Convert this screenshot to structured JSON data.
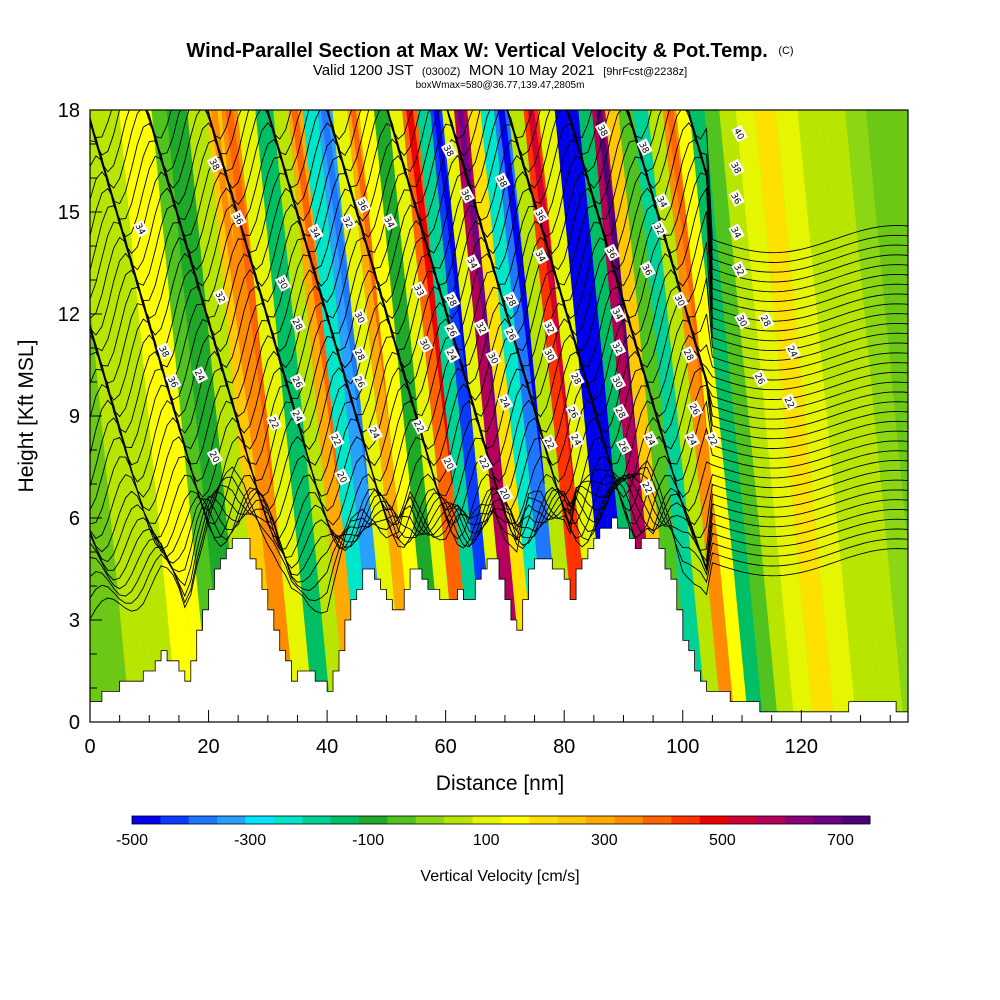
{
  "chart_data": {
    "type": "heatmap",
    "title": "Wind-Parallel Section at Max W: Vertical Velocity & Pot.Temp.",
    "title_mark": "(C)",
    "subtitle": {
      "prefix": "Valid 1200 JST",
      "utc": "(0300Z)",
      "date": "MON 10 May 2021",
      "forecast": "[9hrFcst@2238z]"
    },
    "box_info": "boxWmax=580@36.77,139.47,2805m",
    "xlabel": "Distance [nm]",
    "ylabel": "Height [Kft MSL]",
    "xlim": [
      0,
      138
    ],
    "ylim": [
      0,
      18
    ],
    "x_ticks": [
      "0",
      "20",
      "40",
      "60",
      "80",
      "100",
      "120"
    ],
    "x_tick_values": [
      0,
      20,
      40,
      60,
      80,
      100,
      120
    ],
    "y_ticks": [
      "0",
      "3",
      "6",
      "9",
      "12",
      "15",
      "18"
    ],
    "y_tick_values": [
      0,
      3,
      6,
      9,
      12,
      15,
      18
    ],
    "colorbar": {
      "label": "Vertical Velocity [cm/s]",
      "tick_labels": [
        "-500",
        "-300",
        "-100",
        "100",
        "300",
        "500",
        "700"
      ],
      "tick_values": [
        -500,
        -300,
        -100,
        100,
        300,
        500,
        700
      ],
      "range": [
        -500,
        750
      ],
      "colors": [
        "#0000ee",
        "#0a3cff",
        "#1e78ff",
        "#28a0ff",
        "#00e6ff",
        "#00e6c8",
        "#00d296",
        "#00be64",
        "#1eaa28",
        "#50c31e",
        "#8cd714",
        "#b9e600",
        "#e6f500",
        "#ffff00",
        "#ffe100",
        "#ffc800",
        "#ffaa00",
        "#ff8c00",
        "#ff6400",
        "#ff3200",
        "#ee0000",
        "#d20032",
        "#b4005a",
        "#8c0078",
        "#6e0087",
        "#500078"
      ]
    },
    "vertical_velocity_streaks": [
      {
        "x": 5,
        "w": 40
      },
      {
        "x": 9,
        "w": 60
      },
      {
        "x": 14,
        "w": 150
      },
      {
        "x": 16,
        "w": 130
      },
      {
        "x": 18,
        "w": -40
      },
      {
        "x": 21,
        "w": -90
      },
      {
        "x": 25,
        "w": 40
      },
      {
        "x": 27.5,
        "w": 260
      },
      {
        "x": 30,
        "w": 320
      },
      {
        "x": 33,
        "w": 120
      },
      {
        "x": 36,
        "w": -120
      },
      {
        "x": 39,
        "w": 60
      },
      {
        "x": 41,
        "w": 300
      },
      {
        "x": 44,
        "w": -250
      },
      {
        "x": 46,
        "w": -320
      },
      {
        "x": 49,
        "w": 80
      },
      {
        "x": 51,
        "w": 300
      },
      {
        "x": 53,
        "w": 150
      },
      {
        "x": 56,
        "w": -100
      },
      {
        "x": 58,
        "w": 80
      },
      {
        "x": 60.5,
        "w": 380
      },
      {
        "x": 63,
        "w": -200
      },
      {
        "x": 65,
        "w": -420
      },
      {
        "x": 67,
        "w": 100
      },
      {
        "x": 69,
        "w": 560
      },
      {
        "x": 71.5,
        "w": 200
      },
      {
        "x": 73.5,
        "w": -220
      },
      {
        "x": 76,
        "w": -380
      },
      {
        "x": 78.5,
        "w": 60
      },
      {
        "x": 81,
        "w": 420
      },
      {
        "x": 83.5,
        "w": 120
      },
      {
        "x": 86.5,
        "w": -460
      },
      {
        "x": 88,
        "w": -520
      },
      {
        "x": 90,
        "w": -120
      },
      {
        "x": 92.5,
        "w": 580
      },
      {
        "x": 94.5,
        "w": 250
      },
      {
        "x": 97,
        "w": -60
      },
      {
        "x": 99.5,
        "w": -200
      },
      {
        "x": 102,
        "w": 60
      },
      {
        "x": 104.5,
        "w": 330
      },
      {
        "x": 106.5,
        "w": 150
      },
      {
        "x": 109,
        "w": -120
      },
      {
        "x": 111.5,
        "w": -60
      },
      {
        "x": 114,
        "w": 40
      },
      {
        "x": 117,
        "w": 120
      },
      {
        "x": 120.5,
        "w": 200
      },
      {
        "x": 124,
        "w": 90
      },
      {
        "x": 128,
        "w": 60
      },
      {
        "x": 132,
        "w": 30
      },
      {
        "x": 136,
        "w": 20
      }
    ],
    "terrain_height_kft": [
      {
        "x": 0,
        "h": 0.6
      },
      {
        "x": 3,
        "h": 0.9
      },
      {
        "x": 6,
        "h": 1.2
      },
      {
        "x": 9,
        "h": 1.4
      },
      {
        "x": 12,
        "h": 2.0
      },
      {
        "x": 14,
        "h": 1.8
      },
      {
        "x": 15,
        "h": 1.6
      },
      {
        "x": 16,
        "h": 1.2
      },
      {
        "x": 17,
        "h": 1.8
      },
      {
        "x": 18,
        "h": 2.8
      },
      {
        "x": 20,
        "h": 4.0
      },
      {
        "x": 22,
        "h": 4.8
      },
      {
        "x": 24,
        "h": 5.4
      },
      {
        "x": 26,
        "h": 5.3
      },
      {
        "x": 28,
        "h": 4.5
      },
      {
        "x": 30,
        "h": 3.2
      },
      {
        "x": 32,
        "h": 2.0
      },
      {
        "x": 34,
        "h": 1.3
      },
      {
        "x": 36,
        "h": 1.5
      },
      {
        "x": 38,
        "h": 1.3
      },
      {
        "x": 40,
        "h": 1.0
      },
      {
        "x": 42,
        "h": 2.2
      },
      {
        "x": 44,
        "h": 3.6
      },
      {
        "x": 46,
        "h": 4.4
      },
      {
        "x": 48,
        "h": 4.3
      },
      {
        "x": 50,
        "h": 3.5
      },
      {
        "x": 52,
        "h": 3.2
      },
      {
        "x": 54,
        "h": 4.5
      },
      {
        "x": 56,
        "h": 4.2
      },
      {
        "x": 58,
        "h": 3.8
      },
      {
        "x": 60,
        "h": 3.5
      },
      {
        "x": 62,
        "h": 3.8
      },
      {
        "x": 64,
        "h": 3.6
      },
      {
        "x": 66,
        "h": 4.5
      },
      {
        "x": 68,
        "h": 4.9
      },
      {
        "x": 70,
        "h": 3.5
      },
      {
        "x": 72,
        "h": 2.6
      },
      {
        "x": 74,
        "h": 4.4
      },
      {
        "x": 76,
        "h": 4.9
      },
      {
        "x": 78,
        "h": 4.6
      },
      {
        "x": 80,
        "h": 4.2
      },
      {
        "x": 81,
        "h": 3.5
      },
      {
        "x": 82,
        "h": 4.6
      },
      {
        "x": 84,
        "h": 5.0
      },
      {
        "x": 86,
        "h": 5.6
      },
      {
        "x": 88,
        "h": 6.0
      },
      {
        "x": 90,
        "h": 5.6
      },
      {
        "x": 92,
        "h": 5.2
      },
      {
        "x": 94,
        "h": 5.5
      },
      {
        "x": 96,
        "h": 5.0
      },
      {
        "x": 98,
        "h": 4.2
      },
      {
        "x": 100,
        "h": 2.5
      },
      {
        "x": 102,
        "h": 1.6
      },
      {
        "x": 104,
        "h": 1.0
      },
      {
        "x": 106,
        "h": 0.8
      },
      {
        "x": 110,
        "h": 0.6
      },
      {
        "x": 115,
        "h": 0.3
      },
      {
        "x": 120,
        "h": 0.3
      },
      {
        "x": 125,
        "h": 0.3
      },
      {
        "x": 128,
        "h": 0.5
      },
      {
        "x": 132,
        "h": 0.6
      },
      {
        "x": 135,
        "h": 0.5
      },
      {
        "x": 138,
        "h": 0.3
      }
    ],
    "theta_contour_labels": [
      {
        "x": 21,
        "y": 16.4,
        "text": "38"
      },
      {
        "x": 8.5,
        "y": 14.5,
        "text": "34"
      },
      {
        "x": 25,
        "y": 14.8,
        "text": "36"
      },
      {
        "x": 22,
        "y": 12.5,
        "text": "32"
      },
      {
        "x": 12.5,
        "y": 10.9,
        "text": "38"
      },
      {
        "x": 14,
        "y": 10.0,
        "text": "36"
      },
      {
        "x": 18.5,
        "y": 10.2,
        "text": "24"
      },
      {
        "x": 21,
        "y": 7.8,
        "text": "20"
      },
      {
        "x": 32.5,
        "y": 12.9,
        "text": "30"
      },
      {
        "x": 38,
        "y": 14.4,
        "text": "34"
      },
      {
        "x": 35,
        "y": 11.7,
        "text": "28"
      },
      {
        "x": 35,
        "y": 10.0,
        "text": "26"
      },
      {
        "x": 35,
        "y": 9.0,
        "text": "24"
      },
      {
        "x": 31,
        "y": 8.8,
        "text": "22"
      },
      {
        "x": 41.5,
        "y": 8.3,
        "text": "22"
      },
      {
        "x": 42.5,
        "y": 7.2,
        "text": "20"
      },
      {
        "x": 43.5,
        "y": 14.7,
        "text": "32"
      },
      {
        "x": 46,
        "y": 15.2,
        "text": "36"
      },
      {
        "x": 45.5,
        "y": 11.9,
        "text": "30"
      },
      {
        "x": 45.5,
        "y": 10.8,
        "text": "28"
      },
      {
        "x": 45.5,
        "y": 10.0,
        "text": "26"
      },
      {
        "x": 48,
        "y": 8.5,
        "text": "24"
      },
      {
        "x": 50.5,
        "y": 14.7,
        "text": "34"
      },
      {
        "x": 55.5,
        "y": 12.7,
        "text": "33"
      },
      {
        "x": 56.5,
        "y": 11.1,
        "text": "30"
      },
      {
        "x": 55.5,
        "y": 8.7,
        "text": "22"
      },
      {
        "x": 60.5,
        "y": 16.8,
        "text": "38"
      },
      {
        "x": 61,
        "y": 12.4,
        "text": "28"
      },
      {
        "x": 61,
        "y": 11.5,
        "text": "26"
      },
      {
        "x": 61,
        "y": 10.8,
        "text": "24"
      },
      {
        "x": 60.5,
        "y": 7.6,
        "text": "20"
      },
      {
        "x": 63.5,
        "y": 15.5,
        "text": "36"
      },
      {
        "x": 64.5,
        "y": 13.5,
        "text": "34"
      },
      {
        "x": 66,
        "y": 11.6,
        "text": "32"
      },
      {
        "x": 68,
        "y": 10.7,
        "text": "30"
      },
      {
        "x": 66.5,
        "y": 7.6,
        "text": "22"
      },
      {
        "x": 69.5,
        "y": 15.9,
        "text": "38"
      },
      {
        "x": 71,
        "y": 12.4,
        "text": "28"
      },
      {
        "x": 71,
        "y": 11.4,
        "text": "26"
      },
      {
        "x": 70,
        "y": 9.4,
        "text": "24"
      },
      {
        "x": 70,
        "y": 6.7,
        "text": "20"
      },
      {
        "x": 76,
        "y": 14.9,
        "text": "36"
      },
      {
        "x": 76,
        "y": 13.7,
        "text": "34"
      },
      {
        "x": 77.5,
        "y": 11.6,
        "text": "32"
      },
      {
        "x": 77.5,
        "y": 10.8,
        "text": "30"
      },
      {
        "x": 77.5,
        "y": 8.2,
        "text": "22"
      },
      {
        "x": 82,
        "y": 10.1,
        "text": "28"
      },
      {
        "x": 81.5,
        "y": 9.1,
        "text": "26"
      },
      {
        "x": 82,
        "y": 8.3,
        "text": "24"
      },
      {
        "x": 86.5,
        "y": 17.4,
        "text": "38"
      },
      {
        "x": 88,
        "y": 13.8,
        "text": "36"
      },
      {
        "x": 89,
        "y": 12.0,
        "text": "34"
      },
      {
        "x": 89,
        "y": 11.0,
        "text": "32"
      },
      {
        "x": 89,
        "y": 10.0,
        "text": "30"
      },
      {
        "x": 89.5,
        "y": 9.1,
        "text": "28"
      },
      {
        "x": 90,
        "y": 8.1,
        "text": "26"
      },
      {
        "x": 93.5,
        "y": 16.9,
        "text": "38"
      },
      {
        "x": 96.5,
        "y": 15.3,
        "text": "34"
      },
      {
        "x": 96,
        "y": 14.5,
        "text": "32"
      },
      {
        "x": 94,
        "y": 13.3,
        "text": "36"
      },
      {
        "x": 94.5,
        "y": 8.3,
        "text": "24"
      },
      {
        "x": 94,
        "y": 6.9,
        "text": "22"
      },
      {
        "x": 99.5,
        "y": 12.4,
        "text": "30"
      },
      {
        "x": 101,
        "y": 10.8,
        "text": "28"
      },
      {
        "x": 102,
        "y": 9.2,
        "text": "26"
      },
      {
        "x": 101.5,
        "y": 8.3,
        "text": "24"
      },
      {
        "x": 105,
        "y": 8.3,
        "text": "22"
      },
      {
        "x": 109.5,
        "y": 17.3,
        "text": "40"
      },
      {
        "x": 109,
        "y": 16.3,
        "text": "38"
      },
      {
        "x": 109,
        "y": 15.4,
        "text": "36"
      },
      {
        "x": 109,
        "y": 14.4,
        "text": "34"
      },
      {
        "x": 109.5,
        "y": 13.3,
        "text": "32"
      },
      {
        "x": 110,
        "y": 11.8,
        "text": "30"
      },
      {
        "x": 114,
        "y": 11.8,
        "text": "28"
      },
      {
        "x": 113,
        "y": 10.1,
        "text": "26"
      },
      {
        "x": 118.5,
        "y": 10.9,
        "text": "24"
      },
      {
        "x": 118,
        "y": 9.4,
        "text": "22"
      }
    ]
  }
}
